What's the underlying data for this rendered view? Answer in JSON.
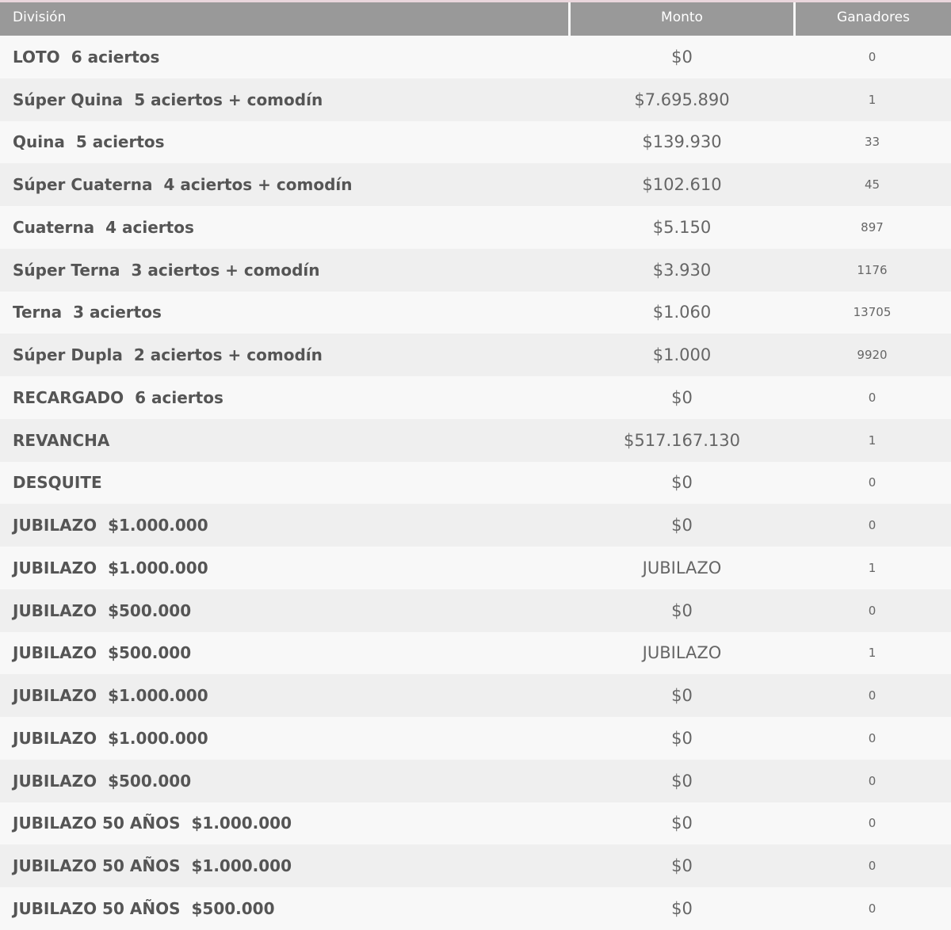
{
  "table": {
    "headers": {
      "division": "División",
      "monto": "Monto",
      "ganadores": "Ganadores"
    },
    "rows": [
      {
        "name": "LOTO",
        "detail": "6 aciertos",
        "monto": "$0",
        "ganadores": "0"
      },
      {
        "name": "Súper Quina",
        "detail": "5 aciertos + comodín",
        "monto": "$7.695.890",
        "ganadores": "1"
      },
      {
        "name": "Quina",
        "detail": "5 aciertos",
        "monto": "$139.930",
        "ganadores": "33"
      },
      {
        "name": "Súper Cuaterna",
        "detail": "4 aciertos + comodín",
        "monto": "$102.610",
        "ganadores": "45"
      },
      {
        "name": "Cuaterna",
        "detail": "4 aciertos",
        "monto": "$5.150",
        "ganadores": "897"
      },
      {
        "name": "Súper Terna",
        "detail": "3 aciertos + comodín",
        "monto": "$3.930",
        "ganadores": "1176"
      },
      {
        "name": "Terna",
        "detail": "3 aciertos",
        "monto": "$1.060",
        "ganadores": "13705"
      },
      {
        "name": "Súper Dupla",
        "detail": "2 aciertos + comodín",
        "monto": "$1.000",
        "ganadores": "9920"
      },
      {
        "name": "RECARGADO",
        "detail": "6 aciertos",
        "monto": "$0",
        "ganadores": "0"
      },
      {
        "name": "REVANCHA",
        "detail": "",
        "monto": "$517.167.130",
        "ganadores": "1"
      },
      {
        "name": "DESQUITE",
        "detail": "",
        "monto": "$0",
        "ganadores": "0"
      },
      {
        "name": "JUBILAZO",
        "detail": "$1.000.000",
        "monto": "$0",
        "ganadores": "0"
      },
      {
        "name": "JUBILAZO",
        "detail": "$1.000.000",
        "monto": "JUBILAZO",
        "ganadores": "1"
      },
      {
        "name": "JUBILAZO",
        "detail": "$500.000",
        "monto": "$0",
        "ganadores": "0"
      },
      {
        "name": "JUBILAZO",
        "detail": "$500.000",
        "monto": "JUBILAZO",
        "ganadores": "1"
      },
      {
        "name": "JUBILAZO",
        "detail": "$1.000.000",
        "monto": "$0",
        "ganadores": "0"
      },
      {
        "name": "JUBILAZO",
        "detail": "$1.000.000",
        "monto": "$0",
        "ganadores": "0"
      },
      {
        "name": "JUBILAZO",
        "detail": "$500.000",
        "monto": "$0",
        "ganadores": "0"
      },
      {
        "name": "JUBILAZO 50 AÑOS",
        "detail": "$1.000.000",
        "monto": "$0",
        "ganadores": "0"
      },
      {
        "name": "JUBILAZO 50 AÑOS",
        "detail": "$1.000.000",
        "monto": "$0",
        "ganadores": "0"
      },
      {
        "name": "JUBILAZO 50 AÑOS",
        "detail": "$500.000",
        "monto": "$0",
        "ganadores": "0"
      }
    ]
  }
}
